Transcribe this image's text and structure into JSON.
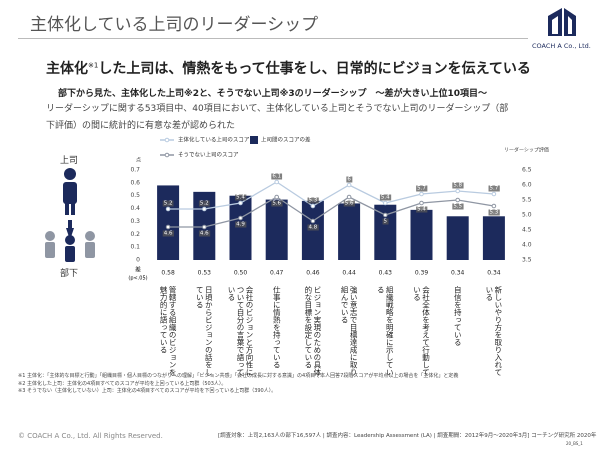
{
  "header": {
    "title": "主体化している上司のリーダーシップ",
    "company": "COACH A Co., Ltd."
  },
  "headline": {
    "pre": "主体化",
    "note": "※1",
    "post": "した上司は、情熱をもって仕事をし、日常的にビジョンを伝えている"
  },
  "subheading": "部下から見た、主体化した上司※2と、そうでない上司※3のリーダーシップ　～差が大きい上位10項目～",
  "description": "リーダーシップに関する53項目中、40項目において、主体化している上司とそうでない上司のリーダーシップ（部下評価）の間に統計的に有意な差が認められた",
  "figure": {
    "boss": "上司",
    "subordinate": "部下"
  },
  "chart_data": {
    "type": "bar",
    "categories": [
      "管轄する組織のビジョンを魅力的に語っている",
      "日頃からビジョンの話をしている",
      "会社のビジョンと方向性について自分の言葉で語っている",
      "仕事に情熱を持っている",
      "ビジョン実現のための具体的な目標を設定している",
      "強い意志で目標達成に取り組んでいる",
      "組織戦略を明確に示している",
      "会社全体を考えて行動している",
      "自信を持っている",
      "新しいやり方を取り入れている"
    ],
    "series": [
      {
        "name": "主体化している上司のスコア",
        "type": "line",
        "axis": "y2",
        "color": "#b9cbe0",
        "values": [
          5.2,
          5.2,
          5.4,
          6.1,
          5.3,
          6.0,
          5.4,
          5.7,
          5.8,
          5.7
        ]
      },
      {
        "name": "上司間のスコアの差",
        "type": "bar",
        "color": "#1c2a5c",
        "values": [
          0.58,
          0.53,
          0.5,
          0.47,
          0.46,
          0.44,
          0.43,
          0.39,
          0.34,
          0.34
        ],
        "value_labels": [
          "0.58",
          "0.53",
          "0.50",
          "0.47",
          "0.46",
          "0.44",
          "0.43",
          "0.39",
          "0.34",
          "0.34"
        ]
      },
      {
        "name": "そうでない上司のスコア",
        "type": "line",
        "axis": "y2",
        "color": "#8f96a3",
        "values": [
          4.6,
          4.6,
          4.9,
          5.6,
          4.8,
          5.6,
          5.0,
          5.4,
          5.5,
          5.3
        ]
      }
    ],
    "ylim": [
      0,
      0.7
    ],
    "yticks": [
      0,
      0.1,
      0.2,
      0.3,
      0.4,
      0.5,
      0.6,
      0.7
    ],
    "y2lim": [
      3.5,
      6.5
    ],
    "y2ticks": [
      3.5,
      {
        "value": 4,
        "label": "4.0"
      },
      4.5,
      {
        "value": 5,
        "label": "5.0"
      },
      5.5,
      {
        "value": 6,
        "label": "6.0"
      },
      6.5
    ],
    "y_label": "点",
    "y2_label": "リーダーシップ評価",
    "diff_label": "差",
    "diff_note": "(p<.05)"
  },
  "footnotes": [
    "※1 主体化：「主体的な目標と行動」「組織目標・個人目標のつながりへの理解」「ビジョン共感」「会社の成長に対する意識」の4項目で本人回答7段階スコアが平均点以上の場合を「主体化」と定義",
    "※2 主体化した上司：主体化の4項目すべてのスコアが平均を上回っている上司群（503人）。",
    "※3 そうでない（主体化していない）上司：主体化の4項目すべてのスコアが平均を下回っている上司群（390人）。"
  ],
  "footer": {
    "copyright": "© COACH A Co., Ltd.  All Rights Reserved.",
    "source": "[調査対象：上司2,163人の部下16,597人 | 調査内容：Leadership Assessment (LA) | 調査期間：2012年9月～2020年3月] コーチング研究所 2020年",
    "code": "20_BS_1"
  }
}
